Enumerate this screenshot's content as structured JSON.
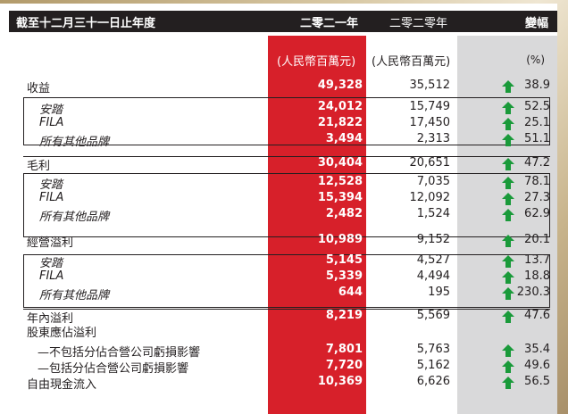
{
  "header": {
    "title": "截至十二月三十一日止年度",
    "col_2021": "二零二一年",
    "col_2020": "二零二零年",
    "col_change": "變幅"
  },
  "units": {
    "unit_2021": "(人民幣百萬元)",
    "unit_2020": "(人民幣百萬元)",
    "unit_change": "(%)"
  },
  "rows": [
    {
      "label": "收益",
      "v21": "49,328",
      "v20": "35,512",
      "pct": "38.9"
    },
    {
      "label": "安踏",
      "v21": "24,012",
      "v20": "15,749",
      "pct": "52.5"
    },
    {
      "label": "FILA",
      "v21": "21,822",
      "v20": "17,450",
      "pct": "25.1"
    },
    {
      "label": "所有其他品牌",
      "v21": "3,494",
      "v20": "2,313",
      "pct": "51.1"
    },
    {
      "label": "毛利",
      "v21": "30,404",
      "v20": "20,651",
      "pct": "47.2"
    },
    {
      "label": "安踏",
      "v21": "12,528",
      "v20": "7,035",
      "pct": "78.1"
    },
    {
      "label": "FILA",
      "v21": "15,394",
      "v20": "12,092",
      "pct": "27.3"
    },
    {
      "label": "所有其他品牌",
      "v21": "2,482",
      "v20": "1,524",
      "pct": "62.9"
    },
    {
      "label": "經營溢利",
      "v21": "10,989",
      "v20": "9,152",
      "pct": "20.1"
    },
    {
      "label": "安踏",
      "v21": "5,145",
      "v20": "4,527",
      "pct": "13.7"
    },
    {
      "label": "FILA",
      "v21": "5,339",
      "v20": "4,494",
      "pct": "18.8"
    },
    {
      "label": "所有其他品牌",
      "v21": "644",
      "v20": "195",
      "pct": "230.3"
    },
    {
      "label": "年內溢利",
      "v21": "8,219",
      "v20": "5,569",
      "pct": "47.6"
    },
    {
      "label": "股東應佔溢利",
      "v21": "",
      "v20": "",
      "pct": ""
    },
    {
      "label": "—不包括分佔合營公司虧損影響",
      "v21": "7,801",
      "v20": "5,763",
      "pct": "35.4"
    },
    {
      "label": "—包括分佔合營公司虧損影響",
      "v21": "7,720",
      "v20": "5,162",
      "pct": "49.6"
    },
    {
      "label": "自由現金流入",
      "v21": "10,369",
      "v20": "6,626",
      "pct": "56.5"
    }
  ],
  "colors": {
    "header_bg": "#231f20",
    "red_column": "#d7202a",
    "grey_column": "#d9d9da",
    "arrow_up": "#1a9a3a"
  },
  "icons": {
    "increase": "up-arrow-icon"
  }
}
